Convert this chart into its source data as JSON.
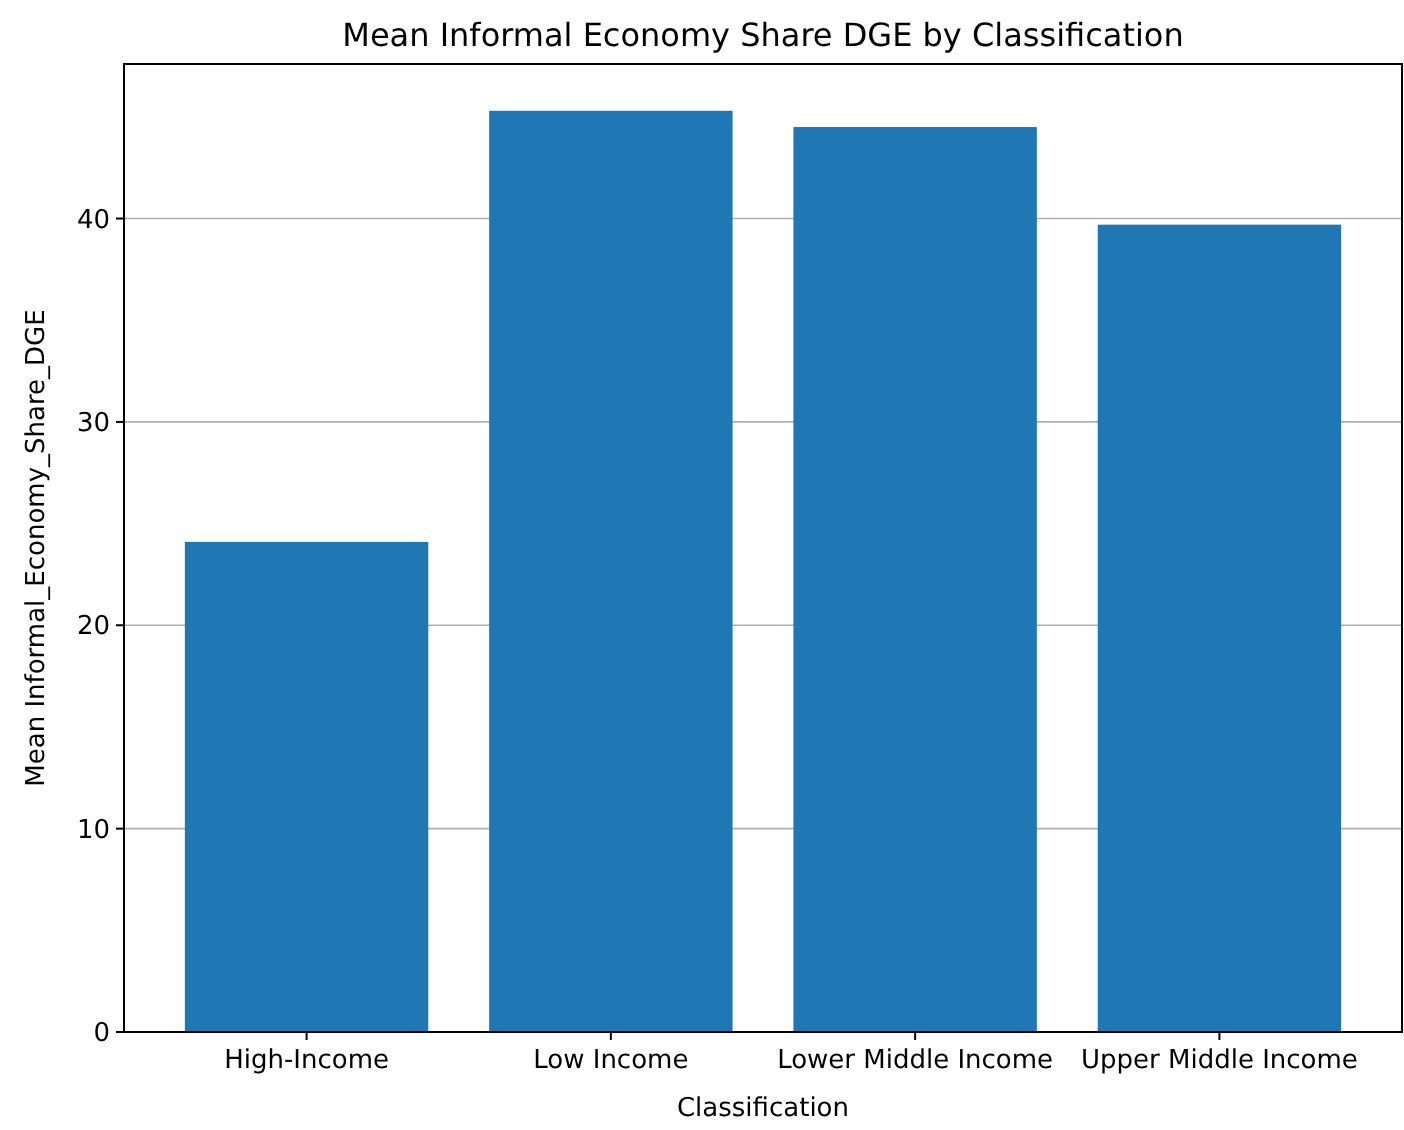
{
  "chart_data": {
    "type": "bar",
    "title": "Mean Informal Economy Share DGE by Classification",
    "xlabel": "Classification",
    "ylabel": "Mean Informal_Economy_Share_DGE",
    "categories": [
      "High-Income",
      "Low Income",
      "Lower Middle Income",
      "Upper Middle Income"
    ],
    "values": [
      24.1,
      45.3,
      44.5,
      39.7
    ],
    "color": "#1f77b4",
    "ylim": [
      0,
      47.6
    ],
    "yticks": [
      0,
      10,
      20,
      30,
      40
    ],
    "grid": "y"
  }
}
